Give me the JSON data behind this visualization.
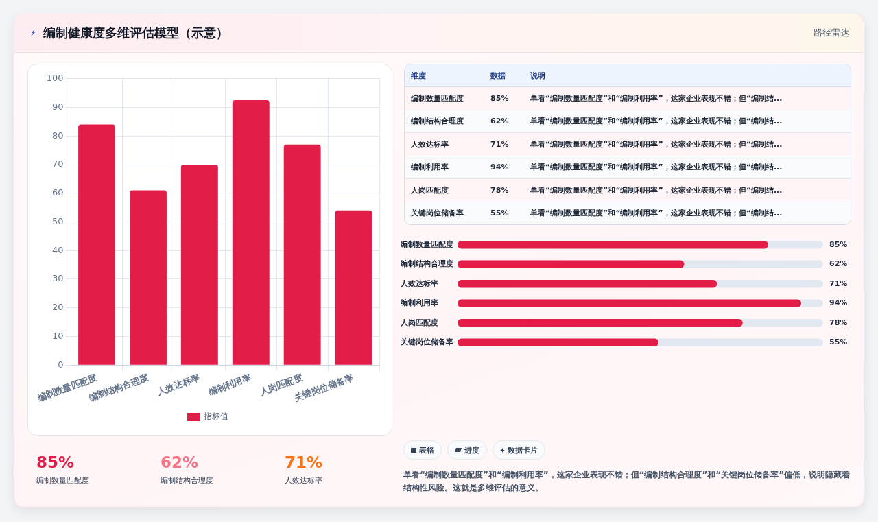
{
  "chart_data": [
    {
      "type": "other",
      "title": "编制健康度多维评估模型（示意）",
      "subtitle": "路径雷达"
    },
    {
      "type": "bar",
      "categories": [
        "编制数量匹配度",
        "编制结构合理度",
        "人效达标率",
        "编制利用率",
        "人岗匹配度",
        "关键岗位储备率"
      ],
      "series": [
        {
          "name": "指标值",
          "color": "#e11d48",
          "values": [
            84,
            61,
            70,
            92.5,
            77,
            54
          ]
        }
      ],
      "ylim": [
        0,
        100
      ],
      "yticks": [
        0,
        10,
        20,
        30,
        40,
        50,
        60,
        70,
        80,
        90,
        100
      ],
      "grid": true,
      "legend": "bottom"
    },
    {
      "type": "other",
      "categories": [
        "编制数量匹配度",
        "编制结构合理度",
        "人效达标率",
        "编制利用率",
        "人岗匹配度",
        "关键岗位储备率"
      ],
      "value_labels": [
        "85%",
        "62%",
        "71%",
        "94%",
        "78%",
        "55%"
      ],
      "annotations": [
        "维度",
        "数据",
        "说明",
        "单看“编制数量匹配度”和“编制利用率”，这家企业表现不错；但“编制结...",
        "单看“编制数量匹配度”和“编制利用率”，这家企业表现不错；但“编制结...",
        "单看“编制数量匹配度”和“编制利用率”，这家企业表现不错；但“编制结...",
        "单看“编制数量匹配度”和“编制利用率”，这家企业表现不错；但“编制结...",
        "单看“编制数量匹配度”和“编制利用率”，这家企业表现不错；但“编制结...",
        "单看“编制数量匹配度”和“编制利用率”，这家企业表现不错；但“编制结..."
      ]
    },
    {
      "type": "bar",
      "orientation": "horizontal",
      "categories": [
        "编制数量匹配度",
        "编制结构合理度",
        "人效达标率",
        "编制利用率",
        "人岗匹配度",
        "关键岗位储备率"
      ],
      "values": [
        85,
        62,
        71,
        94,
        78,
        55
      ],
      "color": "#e11d48",
      "value_labels": [
        "85%",
        "62%",
        "71%",
        "94%",
        "78%",
        "55%"
      ],
      "xlim": [
        0,
        100
      ],
      "tick_labels": "y"
    },
    {
      "type": "other",
      "categories": [
        "编制数量匹配度",
        "编制结构合理度",
        "人效达标率"
      ],
      "values": [
        85,
        62,
        71
      ],
      "value_labels": [
        "85%",
        "62%",
        "71%"
      ],
      "colors": [
        "#e11d48",
        "#f87185",
        "#f97316"
      ]
    },
    {
      "type": "other",
      "annotations": [
        "表格",
        "进度",
        "数据卡片",
        "单看“编制数量匹配度”和“编制利用率”，这家企业表现不错；但“编制结构合理度”和“关键岗位储备率”偏低，说明隐藏着结构性风险。这就是多维评估的意义。"
      ]
    }
  ]
}
